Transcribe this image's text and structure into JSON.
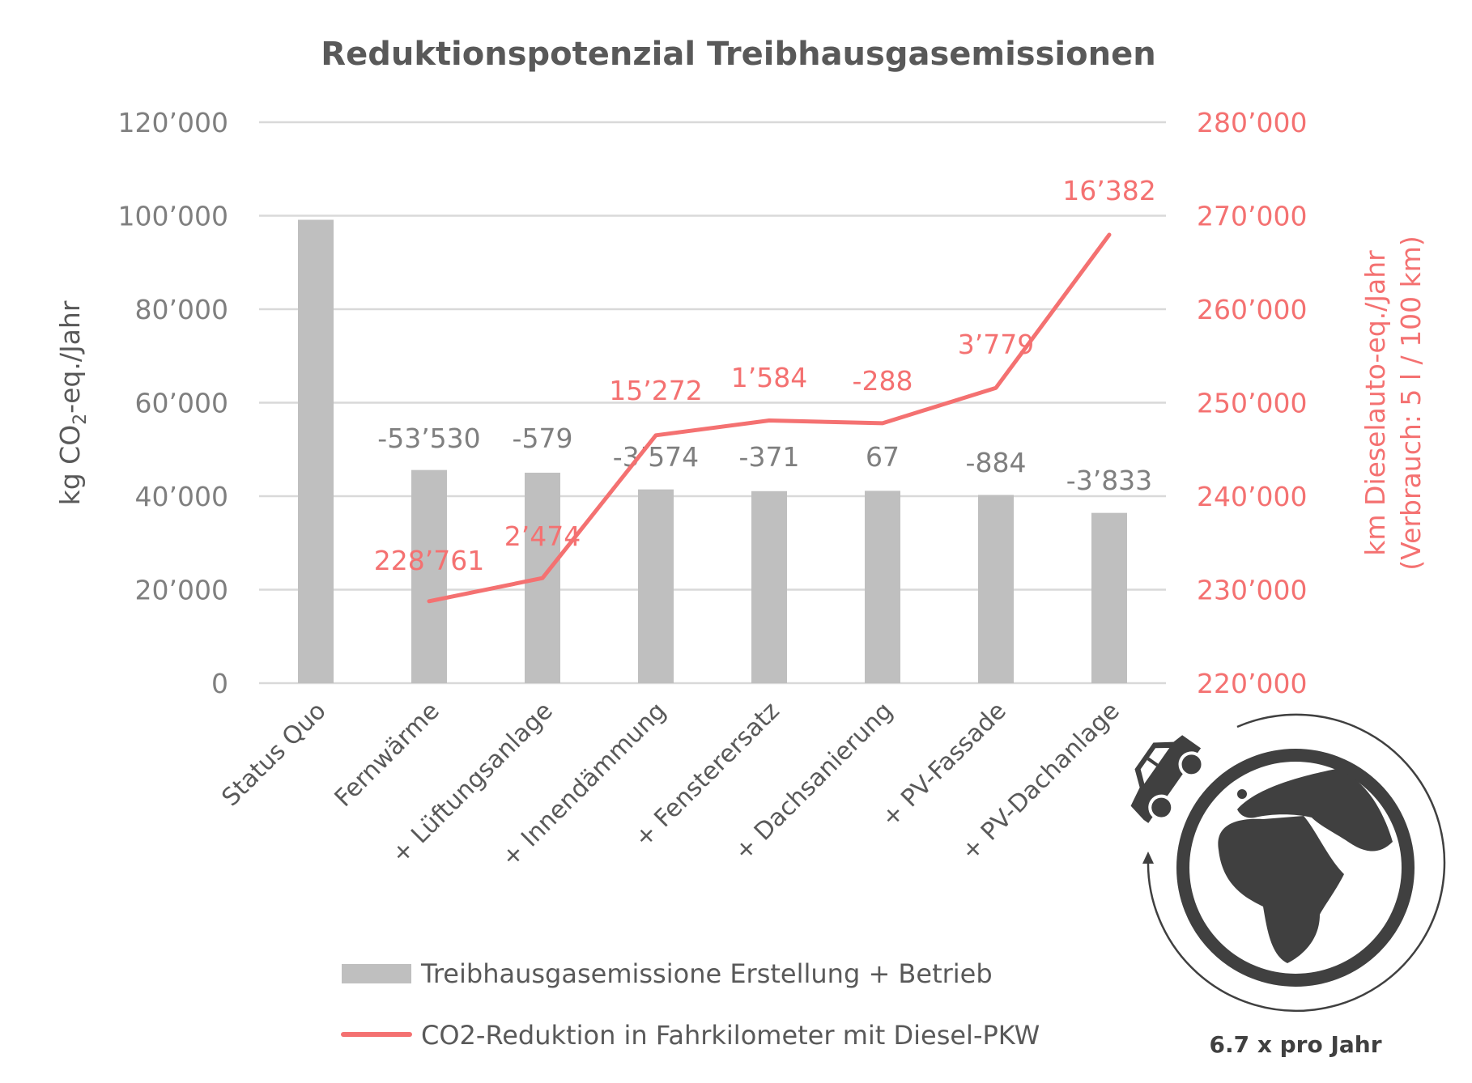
{
  "chart_data": {
    "type": "bar+line",
    "title": "Reduktionspotenzial Treibhausgasemissionen",
    "categories": [
      "Status Quo",
      "Fernwärme",
      "+ Lüftungsanlage",
      "+ Innendämmung",
      "+ Fenstersersatz",
      "+ Dachsanierung",
      "+ PV-Fassade",
      "+ PV-Dachanlage"
    ],
    "series": [
      {
        "name": "Treibhausgasemissione Erstellung + Betrieb",
        "type": "bar",
        "axis": "left",
        "color": "#bfbfbf",
        "values": [
          99130,
          45600,
          45021,
          41447,
          41076,
          41143,
          40259,
          36426
        ],
        "data_labels": [
          "",
          "-53’530",
          "-579",
          "-3’574",
          "-371",
          "67",
          "-884",
          "-3’833"
        ]
      },
      {
        "name": "CO2-Reduktion in Fahrkilometer mit Diesel-PKW",
        "type": "line",
        "axis": "right",
        "color": "#f47171",
        "values": [
          null,
          228761,
          231235,
          246507,
          248091,
          247803,
          251582,
          267964
        ],
        "data_labels": [
          "",
          "228’761",
          "2’474",
          "15’272",
          "1’584",
          "-288",
          "3’779",
          "16’382"
        ]
      }
    ],
    "ylabel": "kg CO2-eq./Jahr",
    "ylabel_parts": {
      "pre": "kg CO",
      "sub": "2",
      "post": "-eq./Jahr"
    },
    "ylim": [
      0,
      120000
    ],
    "yticks": [
      "0",
      "20’000",
      "40’000",
      "60’000",
      "80’000",
      "100’000",
      "120’000"
    ],
    "y2label": [
      "km Dieselauto-eq./Jahr",
      "(Verbrauch: 5 l / 100 km)"
    ],
    "y2lim": [
      220000,
      280000
    ],
    "y2ticks": [
      "220’000",
      "230’000",
      "240’000",
      "250’000",
      "260’000",
      "270’000",
      "280’000"
    ],
    "grid": true,
    "legend_position": "bottom"
  },
  "labels": {
    "categories_display": [
      "Status Quo",
      "Fernwärme",
      "+ Lüftungsanlage",
      "+ Innendämmung",
      "+ Fensterersatz",
      "+ Dachsanierung",
      "+ PV-Fassade",
      "+ PV-Dachanlage"
    ]
  },
  "legend": [
    {
      "label": "Treibhausgasemissione Erstellung + Betrieb",
      "swatch": "bar"
    },
    {
      "label": "CO2-Reduktion in Fahrkilometer mit Diesel-PKW",
      "swatch": "line"
    }
  ],
  "infographic": {
    "caption": "6.7 x pro Jahr",
    "icons": [
      "car-icon",
      "globe-icon",
      "circular-arrow-icon"
    ]
  },
  "colors": {
    "bar": "#bfbfbf",
    "line": "#f47171",
    "grid": "#d9d9d9",
    "text": "#595959",
    "icon": "#404040"
  }
}
